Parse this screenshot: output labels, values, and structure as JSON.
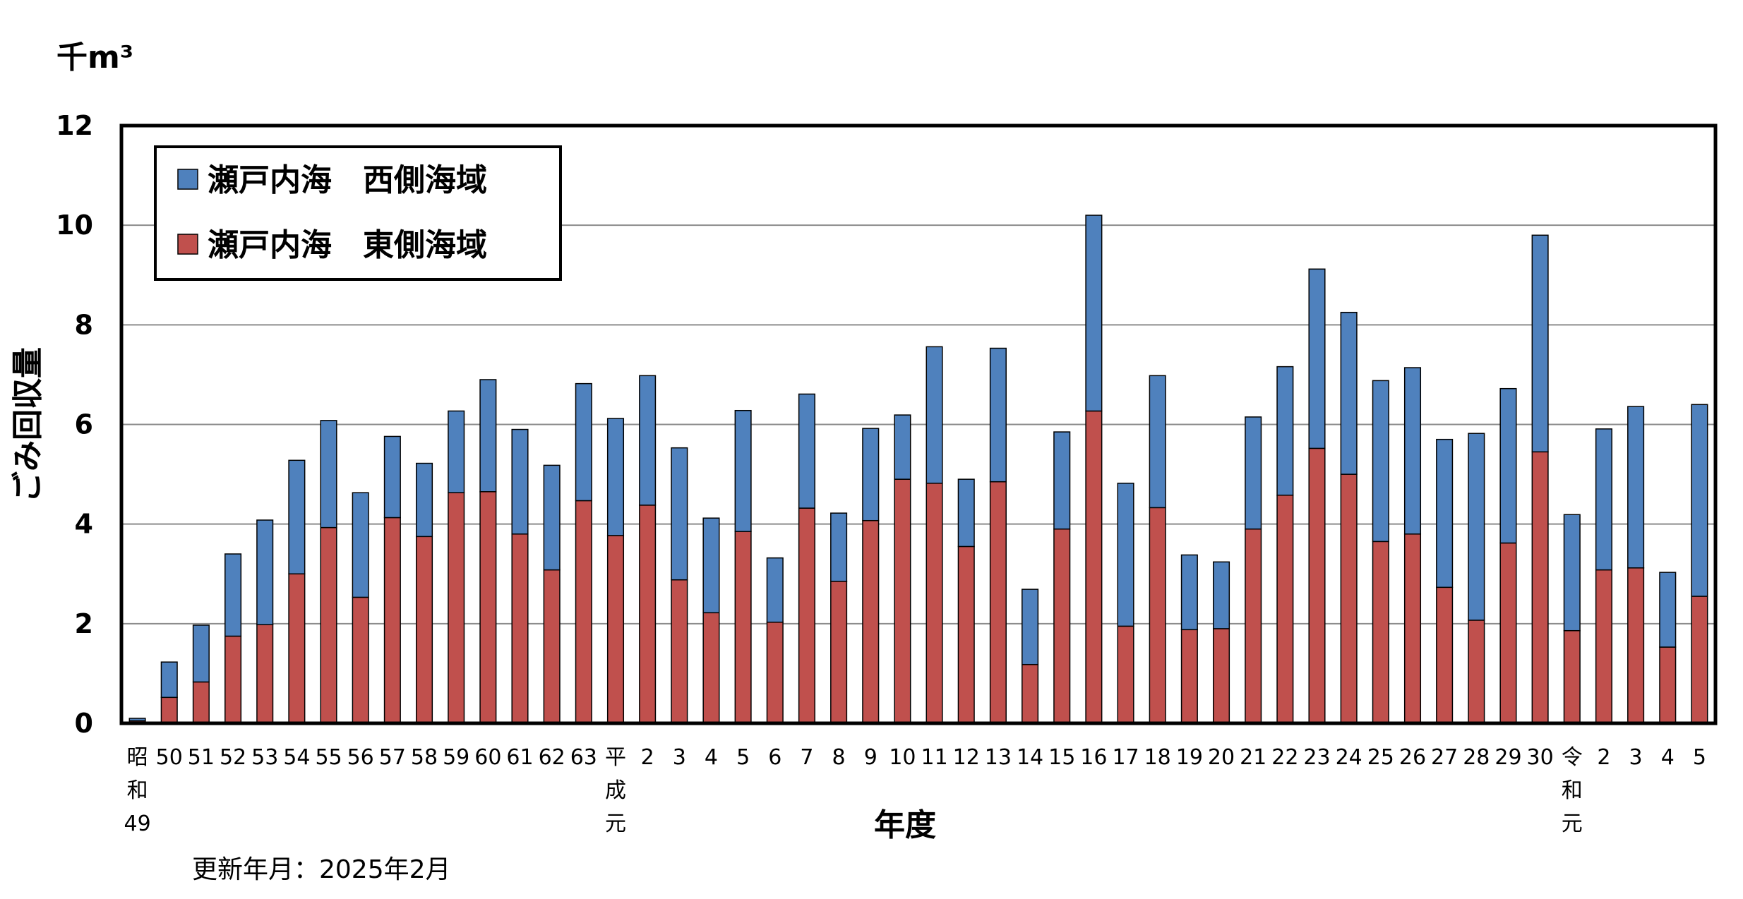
{
  "chart_data": {
    "type": "bar",
    "stacked": true,
    "unit_label": "千m³",
    "xlabel": "年度",
    "ylabel": "ごみ回収量",
    "ylim": [
      0,
      12
    ],
    "yticks": [
      0,
      2,
      4,
      6,
      8,
      10,
      12
    ],
    "grid": true,
    "legend_position": "top-left",
    "categories": [
      [
        "昭",
        "和",
        "49"
      ],
      [
        "50"
      ],
      [
        "51"
      ],
      [
        "52"
      ],
      [
        "53"
      ],
      [
        "54"
      ],
      [
        "55"
      ],
      [
        "56"
      ],
      [
        "57"
      ],
      [
        "58"
      ],
      [
        "59"
      ],
      [
        "60"
      ],
      [
        "61"
      ],
      [
        "62"
      ],
      [
        "63"
      ],
      [
        "平",
        "成",
        "元"
      ],
      [
        "2"
      ],
      [
        "3"
      ],
      [
        "4"
      ],
      [
        "5"
      ],
      [
        "6"
      ],
      [
        "7"
      ],
      [
        "8"
      ],
      [
        "9"
      ],
      [
        "10"
      ],
      [
        "11"
      ],
      [
        "12"
      ],
      [
        "13"
      ],
      [
        "14"
      ],
      [
        "15"
      ],
      [
        "16"
      ],
      [
        "17"
      ],
      [
        "18"
      ],
      [
        "19"
      ],
      [
        "20"
      ],
      [
        "21"
      ],
      [
        "22"
      ],
      [
        "23"
      ],
      [
        "24"
      ],
      [
        "25"
      ],
      [
        "26"
      ],
      [
        "27"
      ],
      [
        "28"
      ],
      [
        "29"
      ],
      [
        "30"
      ],
      [
        "令",
        "和",
        "元"
      ],
      [
        "2"
      ],
      [
        "3"
      ],
      [
        "4"
      ],
      [
        "5"
      ]
    ],
    "series": [
      {
        "name": "瀬戸内海　東側海域",
        "color": "#c0504d",
        "values": [
          0.05,
          0.52,
          0.83,
          1.75,
          1.98,
          3.0,
          3.93,
          2.53,
          4.13,
          3.75,
          4.63,
          4.65,
          3.8,
          3.08,
          4.47,
          3.77,
          4.38,
          2.88,
          2.22,
          3.85,
          2.03,
          4.32,
          2.85,
          4.07,
          4.9,
          4.82,
          3.55,
          4.85,
          1.18,
          3.9,
          6.27,
          1.95,
          4.33,
          1.88,
          1.9,
          3.9,
          4.58,
          5.52,
          5.0,
          3.65,
          3.8,
          2.73,
          2.07,
          3.62,
          5.45,
          1.86,
          3.08,
          3.12,
          1.53,
          2.55
        ]
      },
      {
        "name": "瀬戸内海　西側海域",
        "color": "#4f81bd",
        "values": [
          0.05,
          0.71,
          1.14,
          1.65,
          2.1,
          2.28,
          2.15,
          2.1,
          1.63,
          1.47,
          1.64,
          2.25,
          2.1,
          2.1,
          2.35,
          2.35,
          2.6,
          2.65,
          1.9,
          2.43,
          1.29,
          2.29,
          1.37,
          1.85,
          1.29,
          2.74,
          1.35,
          2.68,
          1.51,
          1.95,
          3.93,
          2.87,
          2.65,
          1.5,
          1.34,
          2.25,
          2.58,
          3.6,
          3.25,
          3.23,
          3.34,
          2.97,
          3.75,
          3.1,
          4.35,
          2.33,
          2.83,
          3.24,
          1.5,
          3.85
        ]
      }
    ],
    "legend": [
      {
        "label": "瀬戸内海　西側海域",
        "color": "#4f81bd"
      },
      {
        "label": "瀬戸内海　東側海域",
        "color": "#c0504d"
      }
    ]
  },
  "footer": {
    "note": "更新年月：2025年2月"
  }
}
